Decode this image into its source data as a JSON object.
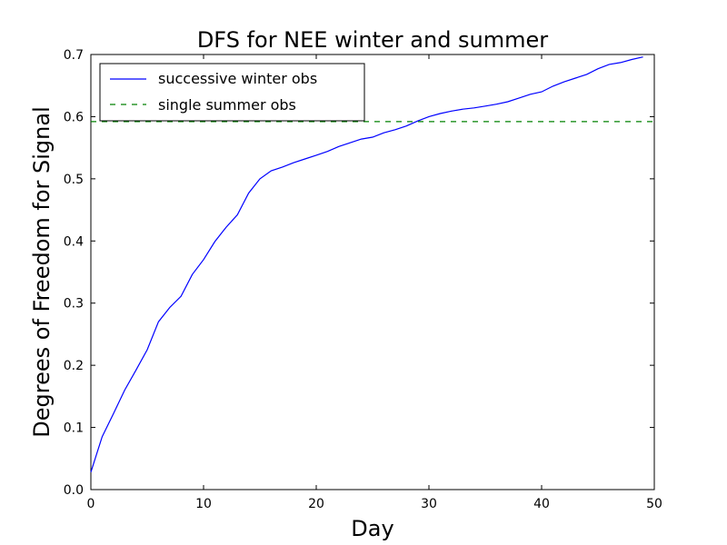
{
  "chart_data": {
    "type": "line",
    "title": "DFS for NEE winter and summer",
    "xlabel": "Day",
    "ylabel": "Degrees of Freedom for Signal",
    "xlim": [
      0,
      50
    ],
    "ylim": [
      0.0,
      0.7
    ],
    "xticks": [
      "0",
      "10",
      "20",
      "30",
      "40",
      "50"
    ],
    "yticks": [
      "0.0",
      "0.1",
      "0.2",
      "0.3",
      "0.4",
      "0.5",
      "0.6",
      "0.7"
    ],
    "grid": false,
    "legend_position": "top-left",
    "series": [
      {
        "name": "successive winter obs",
        "color": "#0000ff",
        "style": "solid",
        "x": [
          0,
          1,
          2,
          3,
          4,
          5,
          6,
          7,
          8,
          9,
          10,
          11,
          12,
          13,
          14,
          15,
          16,
          17,
          18,
          19,
          20,
          21,
          22,
          23,
          24,
          25,
          26,
          27,
          28,
          29,
          30,
          31,
          32,
          33,
          34,
          35,
          36,
          37,
          38,
          39,
          40,
          41,
          42,
          43,
          44,
          45,
          46,
          47,
          48,
          49
        ],
        "y": [
          0.028,
          0.085,
          0.122,
          0.16,
          0.192,
          0.225,
          0.27,
          0.293,
          0.311,
          0.346,
          0.37,
          0.399,
          0.422,
          0.442,
          0.477,
          0.5,
          0.513,
          0.519,
          0.526,
          0.532,
          0.538,
          0.544,
          0.552,
          0.558,
          0.564,
          0.567,
          0.574,
          0.579,
          0.585,
          0.593,
          0.6,
          0.605,
          0.609,
          0.612,
          0.614,
          0.617,
          0.62,
          0.624,
          0.63,
          0.636,
          0.64,
          0.649,
          0.656,
          0.662,
          0.668,
          0.677,
          0.684,
          0.687,
          0.692,
          0.696
        ]
      },
      {
        "name": "single summer obs",
        "color": "#008000",
        "style": "dashed",
        "x": [
          0,
          50
        ],
        "y": [
          0.592,
          0.592
        ]
      }
    ]
  }
}
